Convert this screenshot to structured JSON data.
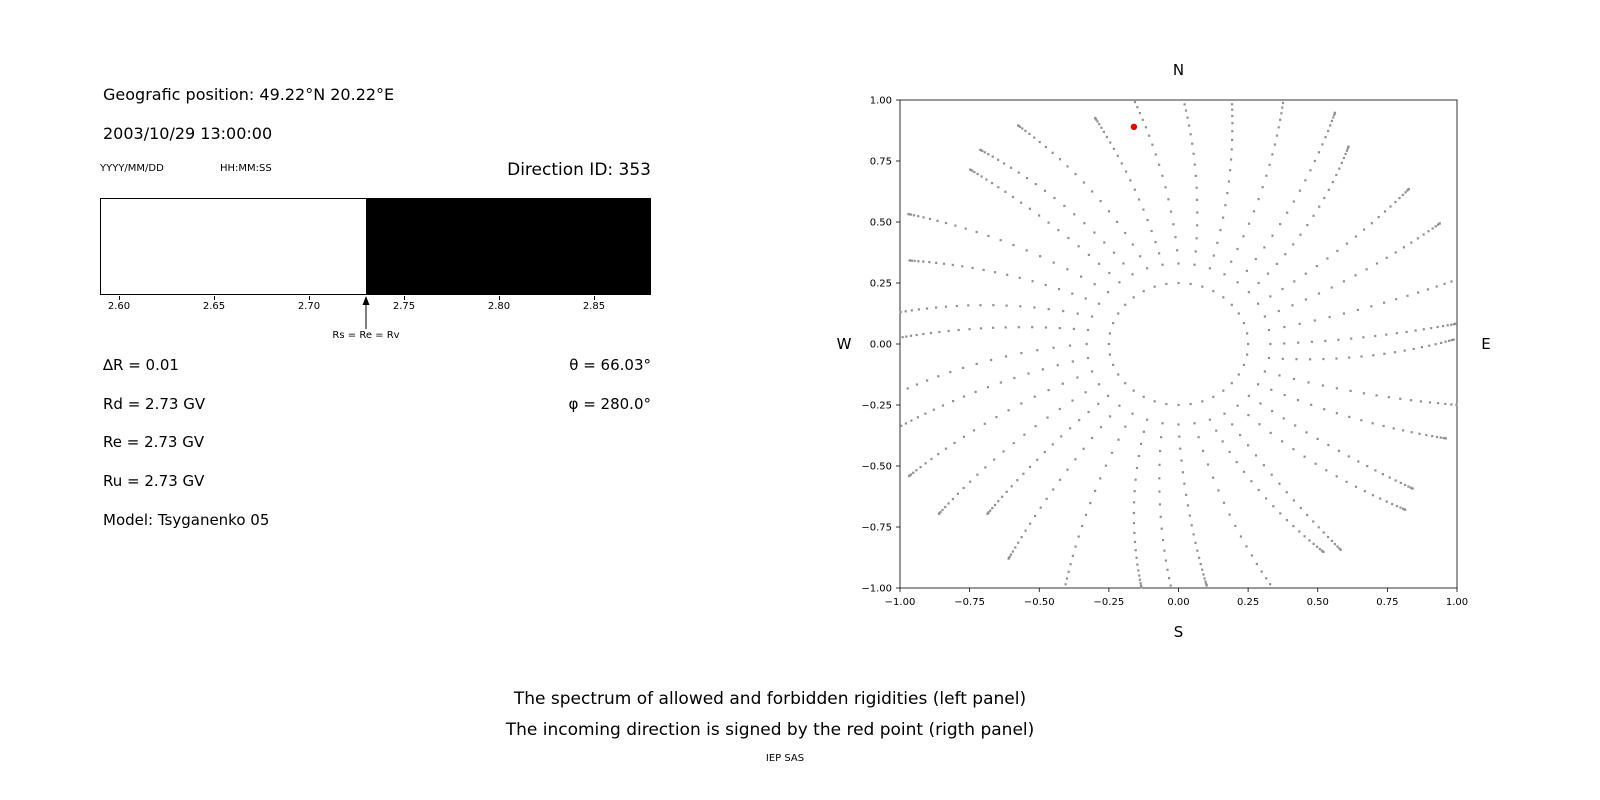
{
  "left_panel": {
    "geo_position": "Geografic position: 49.22°N 20.22°E",
    "datetime": "2003/10/29 13:00:00",
    "date_format": "YYYY/MM/DD",
    "time_format": "HH:MM:SS",
    "direction_id": "Direction ID: 353",
    "params_left": [
      "∆R = 0.01",
      "Rd = 2.73 GV",
      "Re = 2.73 GV",
      "Ru = 2.73 GV",
      "Model: Tsyganenko 05"
    ],
    "params_right": [
      "θ = 66.03°",
      "φ = 280.0°"
    ]
  },
  "footer": {
    "caption_line1": "The spectrum of allowed and forbidden rigidities (left panel)",
    "caption_line2": "The incoming direction is signed by the red point (rigth panel)",
    "credit": "IEP SAS"
  },
  "chart_data": [
    {
      "id": "rigidity-spectrum",
      "type": "bar",
      "title": "",
      "x_range": [
        2.59,
        2.88
      ],
      "x_ticks": [
        "2.60",
        "2.65",
        "2.70",
        "2.75",
        "2.80",
        "2.85"
      ],
      "x_tick_values": [
        2.6,
        2.65,
        2.7,
        2.75,
        2.8,
        2.85
      ],
      "cutoff_value": 2.73,
      "cutoff_label": "Rs = Re = Rv",
      "allowed_region": {
        "from": 2.59,
        "to": 2.73,
        "color": "#ffffff"
      },
      "forbidden_region": {
        "from": 2.73,
        "to": 2.88,
        "color": "#000000"
      }
    },
    {
      "id": "incoming-direction-map",
      "type": "scatter",
      "x_range": [
        -1.0,
        1.0
      ],
      "y_range": [
        -1.0,
        1.0
      ],
      "x_ticks": [
        "−1.00",
        "−0.75",
        "−0.50",
        "−0.25",
        "0.00",
        "0.25",
        "0.50",
        "0.75",
        "1.00"
      ],
      "x_tick_values": [
        -1.0,
        -0.75,
        -0.5,
        -0.25,
        0.0,
        0.25,
        0.5,
        0.75,
        1.0
      ],
      "y_ticks": [
        "1.00",
        "0.75",
        "0.50",
        "0.25",
        "0.00",
        "−0.25",
        "−0.50",
        "−0.75",
        "−1.00"
      ],
      "y_tick_values": [
        1.0,
        0.75,
        0.5,
        0.25,
        0.0,
        -0.25,
        -0.5,
        -0.75,
        -1.0
      ],
      "compass": {
        "north": "N",
        "south": "S",
        "east": "E",
        "west": "W"
      },
      "red_point": {
        "x": -0.16,
        "y": 0.89,
        "color": "#e60000"
      },
      "grid_dots": {
        "color": "#909090",
        "n_spokes": 36,
        "dots_per_spoke": 22,
        "ring_radius": 0.25,
        "spoke_r_start": 0.33,
        "spoke_r_end_base": 1.05,
        "spoke_r_end_jitter": 0.08,
        "curl_deg": 9
      }
    }
  ]
}
